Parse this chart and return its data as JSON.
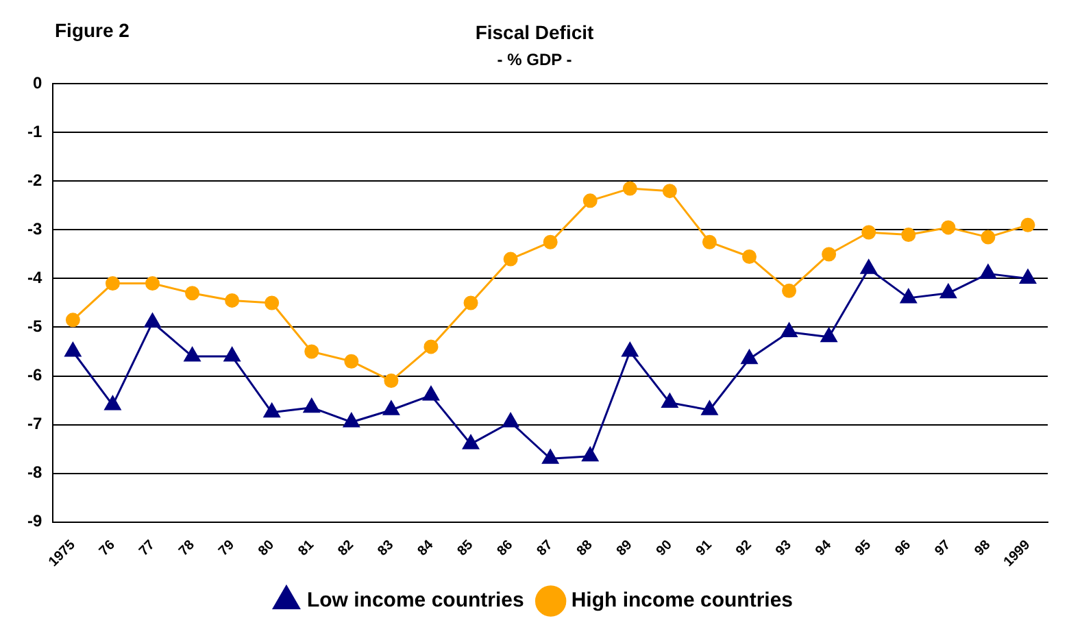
{
  "chart_data": {
    "type": "line",
    "title": "Fiscal Deficit",
    "subtitle": "- % GDP -",
    "annotations": [
      "Figure 2"
    ],
    "categories": [
      "1975",
      "76",
      "77",
      "78",
      "79",
      "80",
      "81",
      "82",
      "83",
      "84",
      "85",
      "86",
      "87",
      "88",
      "89",
      "90",
      "91",
      "92",
      "93",
      "94",
      "95",
      "96",
      "97",
      "98",
      "1999"
    ],
    "series": [
      {
        "name": "Low income countries",
        "color": "#000080",
        "marker": "triangle",
        "values": [
          -5.5,
          -6.6,
          -4.9,
          -5.6,
          -5.6,
          -6.75,
          -6.65,
          -6.95,
          -6.7,
          -6.4,
          -7.4,
          -6.95,
          -7.7,
          -7.65,
          -5.5,
          -6.55,
          -6.7,
          -5.65,
          -5.1,
          -5.2,
          -3.8,
          -4.4,
          -4.3,
          -3.9,
          -4.0
        ]
      },
      {
        "name": "High income countries",
        "color": "#ffa500",
        "marker": "circle",
        "values": [
          -4.85,
          -4.1,
          -4.1,
          -4.3,
          -4.45,
          -4.5,
          -5.5,
          -5.7,
          -6.1,
          -5.4,
          -4.5,
          -3.6,
          -3.25,
          -2.4,
          -2.15,
          -2.2,
          -3.25,
          -3.55,
          -4.25,
          -3.5,
          -3.05,
          -3.1,
          -2.95,
          -3.15,
          -2.9
        ]
      }
    ],
    "ylim": [
      -9,
      0
    ],
    "yticks": [
      0,
      -1,
      -2,
      -3,
      -4,
      -5,
      -6,
      -7,
      -8,
      -9
    ],
    "grid": "y",
    "legend": "bottom",
    "line_style": "solid"
  }
}
